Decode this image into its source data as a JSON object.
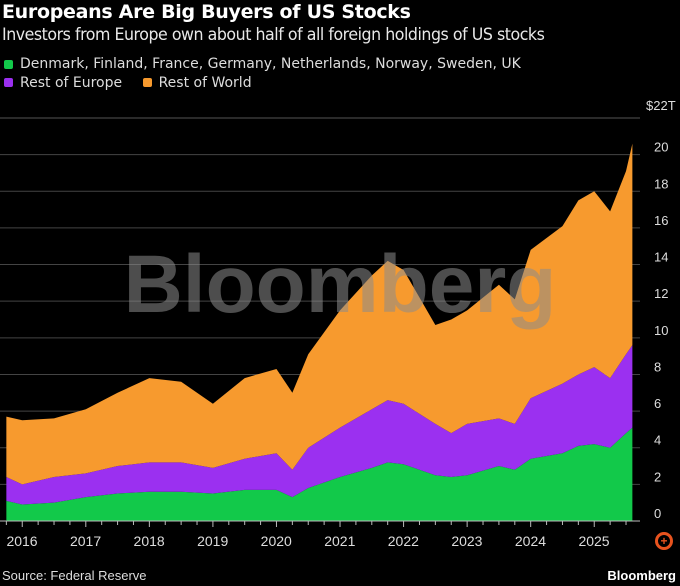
{
  "header": {
    "title": "Europeans Are Big Buyers of US Stocks",
    "subtitle": "Investors from Europe own about half of all foreign holdings of US stocks"
  },
  "footer": {
    "source": "Source: Federal Reserve",
    "brand": "Bloomberg",
    "watermark": "Bloomberg"
  },
  "chart_data": {
    "type": "area",
    "stacked": true,
    "title": "Europeans Are Big Buyers of US Stocks",
    "subtitle": "Investors from Europe own about half of all foreign holdings of US stocks",
    "ylim": [
      0,
      22
    ],
    "y_unit_label": "$22T",
    "y_ticks": [
      0,
      2,
      4,
      6,
      8,
      10,
      12,
      14,
      16,
      18,
      20
    ],
    "x_ticks": [
      "2016",
      "2017",
      "2018",
      "2019",
      "2020",
      "2021",
      "2022",
      "2023",
      "2024",
      "2025"
    ],
    "grid": true,
    "legend_position": "top",
    "x": [
      2015.75,
      2016,
      2016.5,
      2017,
      2017.5,
      2018,
      2018.5,
      2019,
      2019.5,
      2020,
      2020.25,
      2020.5,
      2021,
      2021.5,
      2021.75,
      2022,
      2022.5,
      2022.75,
      2023,
      2023.5,
      2023.75,
      2024,
      2024.5,
      2024.75,
      2025,
      2025.25,
      2025.5,
      2025.6
    ],
    "series": [
      {
        "name": "Denmark, Finland, France, Germany, Netherlands, Norway, Sweden, UK",
        "color": "#12c94a",
        "values": [
          1.1,
          0.9,
          1.0,
          1.3,
          1.5,
          1.6,
          1.6,
          1.5,
          1.7,
          1.7,
          1.3,
          1.8,
          2.4,
          2.9,
          3.2,
          3.1,
          2.5,
          2.4,
          2.5,
          3.0,
          2.8,
          3.4,
          3.7,
          4.1,
          4.2,
          4.0,
          4.8,
          5.1
        ]
      },
      {
        "name": "Rest of Europe",
        "color": "#9b30f0",
        "values": [
          1.3,
          1.1,
          1.4,
          1.3,
          1.5,
          1.6,
          1.6,
          1.4,
          1.7,
          2.0,
          1.5,
          2.2,
          2.7,
          3.2,
          3.4,
          3.3,
          2.8,
          2.4,
          2.8,
          2.6,
          2.5,
          3.3,
          3.8,
          3.9,
          4.2,
          3.8,
          4.3,
          4.5
        ]
      },
      {
        "name": "Rest of World",
        "color": "#f79a2e",
        "values": [
          3.3,
          3.5,
          3.2,
          3.5,
          4.0,
          4.6,
          4.4,
          3.5,
          4.4,
          4.6,
          4.2,
          5.1,
          6.4,
          7.3,
          7.6,
          7.3,
          5.4,
          6.2,
          6.2,
          7.3,
          6.8,
          8.1,
          8.6,
          9.5,
          9.6,
          9.1,
          10.0,
          11.0
        ]
      }
    ]
  }
}
